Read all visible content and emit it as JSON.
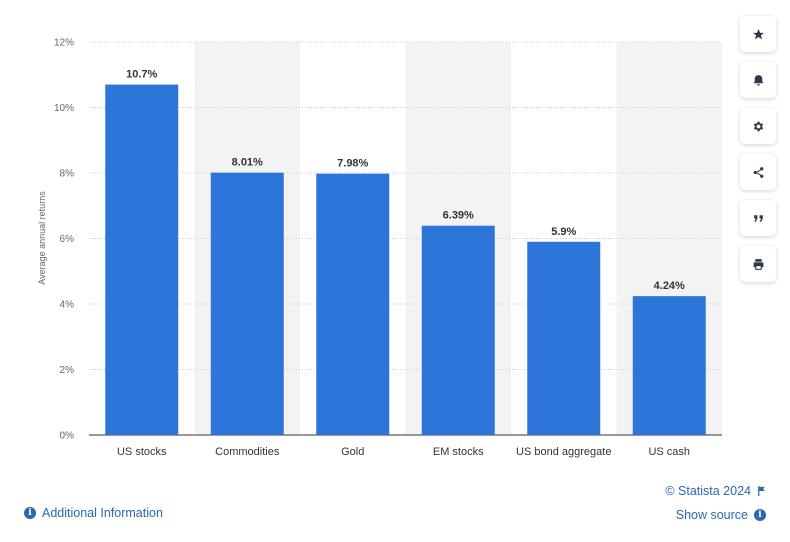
{
  "chart_data": {
    "type": "bar",
    "categories": [
      "US stocks",
      "Commodities",
      "Gold",
      "EM stocks",
      "US bond aggregate",
      "US cash"
    ],
    "values": [
      10.7,
      8.01,
      7.98,
      6.39,
      5.9,
      4.24
    ],
    "data_labels": [
      "10.7%",
      "8.01%",
      "7.98%",
      "6.39%",
      "5.9%",
      "4.24%"
    ],
    "ylabel": "Average annual returns",
    "xlabel": "",
    "ylim": [
      0,
      12
    ],
    "yticks": [
      0,
      2,
      4,
      6,
      8,
      10,
      12
    ],
    "ytick_labels": [
      "0%",
      "2%",
      "4%",
      "6%",
      "8%",
      "10%",
      "12%"
    ],
    "grid": true,
    "bar_color": "#2e75d9",
    "band_color": "#f3f3f3"
  },
  "toolbar": {
    "buttons": [
      {
        "name": "star-icon"
      },
      {
        "name": "bell-icon"
      },
      {
        "name": "gear-icon"
      },
      {
        "name": "share-icon"
      },
      {
        "name": "quote-icon"
      },
      {
        "name": "print-icon"
      }
    ]
  },
  "footer": {
    "additional_info": "Additional Information",
    "copyright": "© Statista 2024",
    "show_source": "Show source"
  },
  "colors": {
    "link": "#2b67b2",
    "bar": "#2e75d9"
  }
}
